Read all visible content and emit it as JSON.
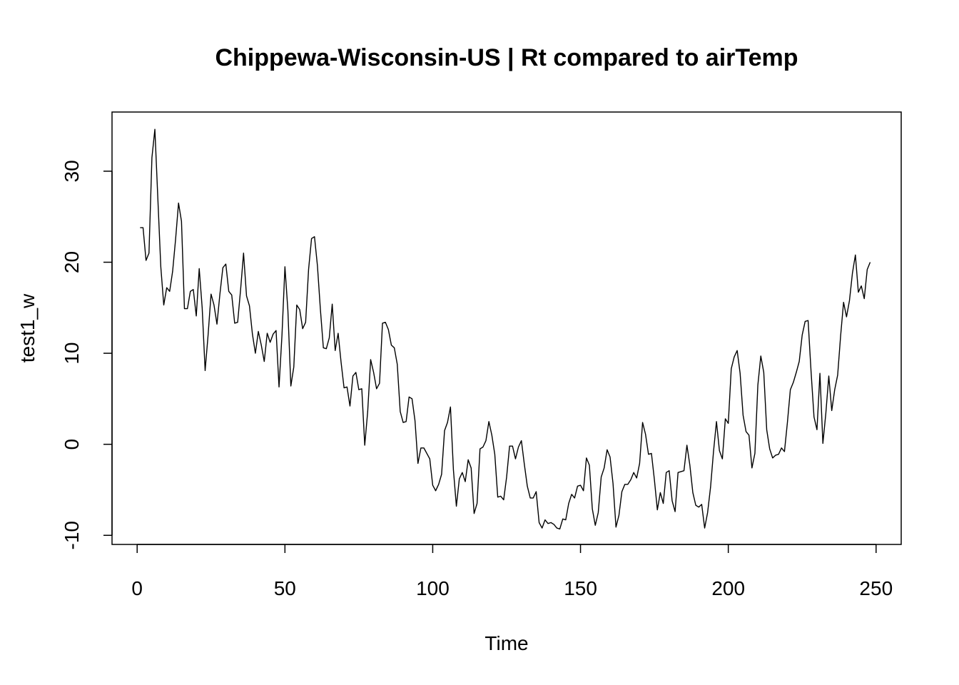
{
  "chart_data": {
    "type": "line",
    "title": "Chippewa-Wisconsin-US | Rt compared to airTemp",
    "xlabel": "Time",
    "ylabel": "test1_w",
    "xlim": [
      -8.5,
      258.5
    ],
    "ylim": [
      -11,
      36.5
    ],
    "xticks": [
      0,
      50,
      100,
      150,
      200,
      250
    ],
    "yticks": [
      -10,
      0,
      10,
      20,
      30
    ],
    "xtick_labels": [
      "0",
      "50",
      "100",
      "150",
      "200",
      "250"
    ],
    "ytick_labels": [
      "-10",
      "0",
      "10",
      "20",
      "30"
    ],
    "grid": false,
    "legend": "none",
    "line_color": "#000000",
    "series": [
      {
        "name": "test1_w",
        "x_start": 1,
        "values": [
          23.8,
          23.8,
          20.2,
          21.0,
          31.5,
          34.6,
          27.0,
          19.5,
          15.3,
          17.2,
          16.8,
          19.0,
          22.5,
          26.5,
          24.5,
          14.9,
          14.9,
          16.8,
          17.0,
          14.1,
          19.3,
          15.0,
          8.1,
          12.0,
          16.5,
          15.3,
          13.2,
          16.5,
          19.4,
          19.8,
          16.8,
          16.4,
          13.3,
          13.4,
          17.0,
          21.0,
          16.3,
          15.2,
          12.1,
          10.0,
          12.4,
          10.9,
          9.1,
          12.2,
          11.2,
          12.1,
          12.5,
          6.3,
          12.0,
          19.5,
          14.7,
          6.4,
          8.5,
          15.3,
          14.8,
          12.7,
          13.4,
          19.2,
          22.6,
          22.8,
          19.6,
          14.8,
          10.6,
          10.5,
          11.7,
          15.4,
          10.3,
          12.2,
          9.0,
          6.2,
          6.3,
          4.2,
          7.5,
          7.9,
          6.0,
          6.1,
          -0.1,
          3.6,
          9.3,
          7.9,
          6.1,
          6.7,
          13.3,
          13.4,
          12.6,
          10.9,
          10.6,
          8.8,
          3.6,
          2.4,
          2.5,
          5.2,
          5.0,
          2.6,
          -2.1,
          -0.4,
          -0.4,
          -1.0,
          -1.6,
          -4.5,
          -5.1,
          -4.4,
          -3.3,
          1.5,
          2.4,
          4.1,
          -2.8,
          -6.8,
          -3.8,
          -3.1,
          -4.1,
          -1.7,
          -2.6,
          -7.6,
          -6.5,
          -0.5,
          -0.3,
          0.4,
          2.5,
          1.0,
          -1.1,
          -5.8,
          -5.7,
          -6.1,
          -3.6,
          -0.2,
          -0.2,
          -1.6,
          -0.3,
          0.4,
          -2.2,
          -4.6,
          -5.9,
          -5.9,
          -5.2,
          -8.6,
          -9.2,
          -8.3,
          -8.7,
          -8.6,
          -8.8,
          -9.2,
          -9.3,
          -8.2,
          -8.3,
          -6.5,
          -5.5,
          -5.9,
          -4.6,
          -4.5,
          -5.1,
          -1.5,
          -2.3,
          -7.1,
          -8.9,
          -7.5,
          -3.6,
          -2.6,
          -0.6,
          -1.4,
          -4.3,
          -9.1,
          -7.8,
          -5.2,
          -4.4,
          -4.4,
          -3.9,
          -3.1,
          -3.7,
          -2.1,
          2.4,
          1.1,
          -1.1,
          -1.0,
          -3.9,
          -7.2,
          -5.3,
          -6.5,
          -3.1,
          -2.9,
          -6.2,
          -7.4,
          -3.1,
          -3.0,
          -2.9,
          -0.1,
          -2.3,
          -5.3,
          -6.7,
          -6.9,
          -6.6,
          -9.2,
          -7.5,
          -4.7,
          -0.8,
          2.5,
          -0.7,
          -1.6,
          2.8,
          2.3,
          8.3,
          9.6,
          10.3,
          7.8,
          3.2,
          1.4,
          1.0,
          -2.6,
          -1.0,
          6.5,
          9.7,
          7.9,
          1.6,
          -0.5,
          -1.5,
          -1.2,
          -1.1,
          -0.4,
          -0.8,
          2.4,
          6.0,
          6.8,
          7.9,
          9.1,
          12.0,
          13.5,
          13.6,
          8.0,
          3.0,
          1.6,
          7.8,
          0.1,
          3.4,
          7.5,
          3.7,
          6.0,
          7.6,
          11.9,
          15.6,
          14.0,
          15.8,
          18.8,
          20.8,
          16.7,
          17.4,
          16.0,
          19.2,
          20.0
        ]
      }
    ]
  }
}
